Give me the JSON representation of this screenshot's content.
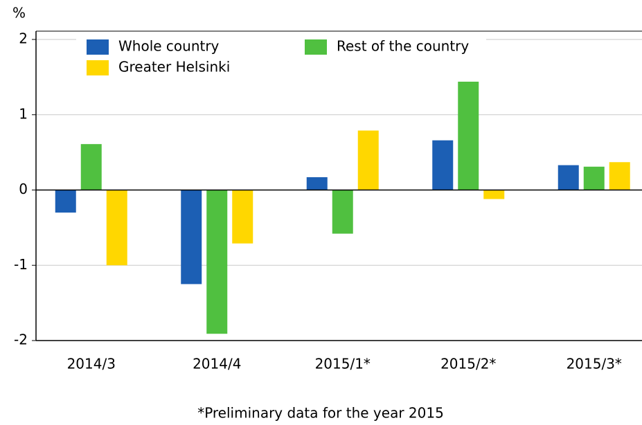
{
  "chart_data": {
    "type": "bar",
    "y_label": "%",
    "note": "*Preliminary data for the year 2015",
    "categories": [
      "2014/3",
      "2014/4",
      "2015/1*",
      "2015/2*",
      "2015/3*"
    ],
    "series": [
      {
        "name": "Whole country",
        "color": "#1c5fb4",
        "values": [
          -0.3,
          -1.25,
          0.17,
          0.66,
          0.33
        ]
      },
      {
        "name": "Rest of the country",
        "color": "#50c040",
        "values": [
          0.61,
          -1.91,
          -0.58,
          1.47,
          0.31
        ]
      },
      {
        "name": "Greater Helsinki",
        "color": "#ffd700",
        "values": [
          -1.0,
          -0.71,
          0.79,
          -0.12,
          0.37
        ]
      }
    ],
    "ylim": [
      -2,
      2
    ],
    "yticks": [
      -2,
      -1,
      0,
      1,
      2
    ],
    "grid": true
  }
}
